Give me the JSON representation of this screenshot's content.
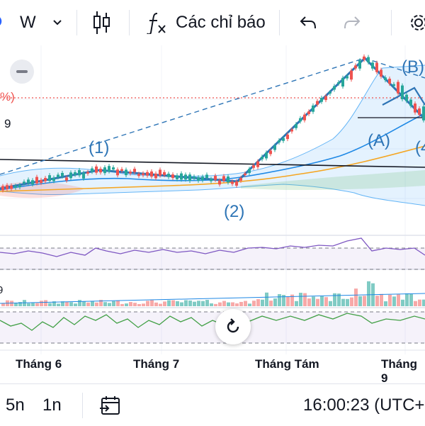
{
  "toolbar": {
    "interval_label": "W",
    "indicators_label": "Các chỉ báo"
  },
  "chart": {
    "price_label_partial": "9",
    "pct_label_partial": "%)",
    "wave_labels": {
      "w1": "(1)",
      "w2": "(2)",
      "wA": "(A)",
      "wB": "(B)",
      "w4": "(4"
    },
    "months": [
      "Tháng 6",
      "Tháng 7",
      "Tháng Tám",
      "Tháng 9"
    ],
    "colors": {
      "up": "#26a69a",
      "down": "#ef5350",
      "wave_line": "#2e75b6",
      "wave_text": "#2e75b6",
      "trend_black": "#131722",
      "ma_orange": "#f5a623",
      "rsi_line": "#7e57c2",
      "osc_line": "#43a047"
    }
  },
  "bottom_bar": {
    "range_5n": "5n",
    "range_1n": "1n",
    "time": "16:00:23 (UTC+"
  }
}
